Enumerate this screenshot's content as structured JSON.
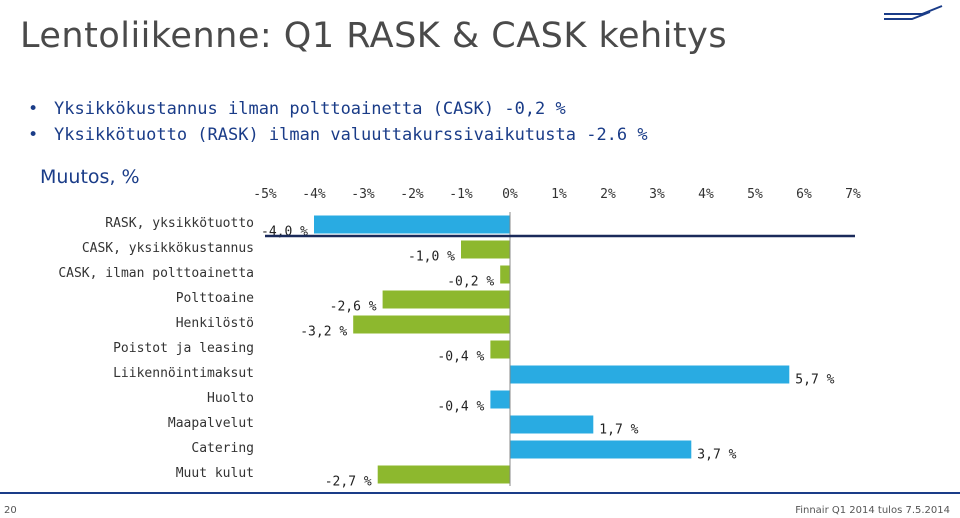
{
  "header": {
    "title": "Lentoliikenne: Q1 RASK & CASK kehitys"
  },
  "bullets": [
    "Yksikkökustannus ilman polttoainetta (CASK) -0,2 %",
    "Yksikkötuotto (RASK) ilman valuuttakurssivaikutusta -2.6 %"
  ],
  "chart_heading": "Muutos, %",
  "footer": {
    "page_number": "20",
    "source": "Finnair Q1 2014 tulos 7.5.2014"
  },
  "colors": {
    "text_blue": "#1a3c88",
    "bar_blue": "#29abe2",
    "bar_green": "#8db82e",
    "axis_dark": "#1a2a5a"
  },
  "chart_data": {
    "type": "bar",
    "orientation": "horizontal",
    "xlim": [
      -5,
      7
    ],
    "x_ticks": [
      "-5%",
      "-4%",
      "-3%",
      "-2%",
      "-1%",
      "0%",
      "1%",
      "2%",
      "3%",
      "4%",
      "5%",
      "6%",
      "7%"
    ],
    "x_tick_values": [
      -5,
      -4,
      -3,
      -2,
      -1,
      0,
      1,
      2,
      3,
      4,
      5,
      6,
      7
    ],
    "grid": false,
    "categories": [
      "RASK, yksikkötuotto",
      "CASK, yksikkökustannus",
      "CASK, ilman polttoainetta",
      "Polttoaine",
      "Henkilöstö",
      "Poistot ja leasing",
      "Liikennöintimaksut",
      "Huolto",
      "Maapalvelut",
      "Catering",
      "Muut kulut"
    ],
    "values": [
      -4.0,
      -1.0,
      -0.2,
      -2.6,
      -3.2,
      -0.4,
      5.7,
      -0.4,
      1.7,
      3.7,
      -2.7
    ],
    "labels": [
      "-4,0 %",
      "-1,0 %",
      "-0,2 %",
      "-2,6 %",
      "-3,2 %",
      "-0,4 %",
      "5,7 %",
      "-0,4 %",
      "1,7 %",
      "3,7 %",
      "-2,7 %"
    ],
    "bar_colors": [
      "blue",
      "green",
      "green",
      "green",
      "green",
      "green",
      "blue",
      "blue",
      "blue",
      "blue",
      "green"
    ]
  }
}
